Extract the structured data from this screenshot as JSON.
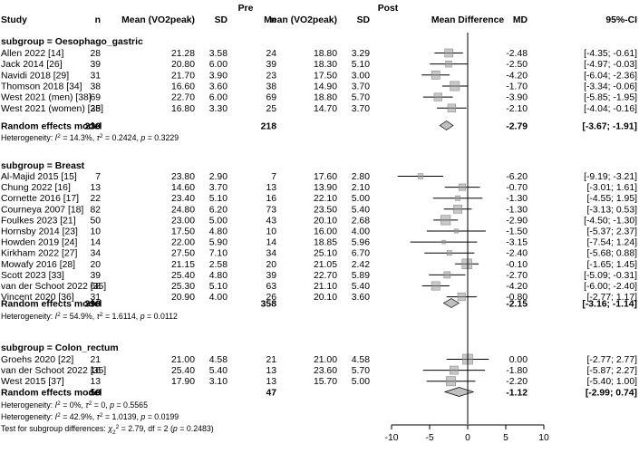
{
  "chart_data": {
    "type": "forest",
    "title": "",
    "header": {
      "group_pre": "Pre",
      "group_post": "Post",
      "study": "Study",
      "n_pre": "n",
      "mean_pre": "Mean (VO2peak)",
      "sd_pre": "SD",
      "n_post": "n",
      "mean_post": "Mean (VO2peak)",
      "sd_post": "SD",
      "plot": "Mean Difference",
      "md": "MD",
      "ci": "95%-CI"
    },
    "x_axis": {
      "range": [
        -10,
        10
      ],
      "ticks": [
        -10,
        -5,
        0,
        5,
        10
      ],
      "ticklabels": [
        "-10",
        "-5",
        "0",
        "5",
        "10"
      ]
    },
    "subgroups": [
      {
        "label": "subgroup = Oesophago_gastric",
        "studies": [
          {
            "study": "Allen 2022 [14]",
            "n_pre": "28",
            "mean_pre": "21.28",
            "sd_pre": "3.58",
            "n_post": "24",
            "mean_post": "18.80",
            "sd_post": "3.29",
            "md_text": "-2.48",
            "ci_text": "[-4.35; -0.61]",
            "md": -2.48,
            "lo": -4.35,
            "hi": -0.61
          },
          {
            "study": "Jack 2014 [26]",
            "n_pre": "39",
            "mean_pre": "20.80",
            "sd_pre": "6.00",
            "n_post": "39",
            "mean_post": "18.30",
            "sd_post": "5.10",
            "md_text": "-2.50",
            "ci_text": "[-4.97; -0.03]",
            "md": -2.5,
            "lo": -4.97,
            "hi": -0.03
          },
          {
            "study": "Navidi 2018 [29]",
            "n_pre": "31",
            "mean_pre": "21.70",
            "sd_pre": "3.90",
            "n_post": "23",
            "mean_post": "17.50",
            "sd_post": "3.00",
            "md_text": "-4.20",
            "ci_text": "[-6.04; -2.36]",
            "md": -4.2,
            "lo": -6.04,
            "hi": -2.36
          },
          {
            "study": "Thomson 2018 [34]",
            "n_pre": "38",
            "mean_pre": "16.60",
            "sd_pre": "3.60",
            "n_post": "38",
            "mean_post": "14.90",
            "sd_post": "3.70",
            "md_text": "-1.70",
            "ci_text": "[-3.34; -0.06]",
            "md": -1.7,
            "lo": -3.34,
            "hi": -0.06
          },
          {
            "study": "West 2021 (men) [38]",
            "n_pre": "69",
            "mean_pre": "22.70",
            "sd_pre": "6.00",
            "n_post": "69",
            "mean_post": "18.80",
            "sd_post": "5.70",
            "md_text": "-3.90",
            "ci_text": "[-5.85; -1.95]",
            "md": -3.9,
            "lo": -5.85,
            "hi": -1.95
          },
          {
            "study": "West 2021 (women) [38]",
            "n_pre": "25",
            "mean_pre": "16.80",
            "sd_pre": "3.30",
            "n_post": "25",
            "mean_post": "14.70",
            "sd_post": "3.70",
            "md_text": "-2.10",
            "ci_text": "[-4.04; -0.16]",
            "md": -2.1,
            "lo": -4.04,
            "hi": -0.16
          }
        ],
        "summary": {
          "label": "Random effects model",
          "n_pre": "230",
          "n_post": "218",
          "md_text": "-2.79",
          "ci_text": "[-3.67; -1.91]",
          "md": -2.79,
          "lo": -3.67,
          "hi": -1.91
        },
        "heterogeneity": [
          {
            "lead": "Heterogeneity: ",
            "i2": "I",
            "i2_eq": " = 14.3%, ",
            "tau": "τ",
            "tau_eq": " = 0.2424, ",
            "p": "p",
            "p_eq": " = 0.3229",
            "sup": "2"
          }
        ]
      },
      {
        "label": "subgroup = Breast",
        "studies": [
          {
            "study": "Al-Majid 2015 [15]",
            "n_pre": "7",
            "mean_pre": "23.80",
            "sd_pre": "2.90",
            "n_post": "7",
            "mean_post": "17.60",
            "sd_post": "2.80",
            "md_text": "-6.20",
            "ci_text": "[-9.19; -3.21]",
            "md": -6.2,
            "lo": -9.19,
            "hi": -3.21
          },
          {
            "study": "Chung 2022 [16]",
            "n_pre": "13",
            "mean_pre": "14.60",
            "sd_pre": "3.70",
            "n_post": "13",
            "mean_post": "13.90",
            "sd_post": "2.10",
            "md_text": "-0.70",
            "ci_text": "[-3.01; 1.61]",
            "md": -0.7,
            "lo": -3.01,
            "hi": 1.61
          },
          {
            "study": "Cornette 2016 [17]",
            "n_pre": "22",
            "mean_pre": "23.40",
            "sd_pre": "5.10",
            "n_post": "16",
            "mean_post": "22.10",
            "sd_post": "5.00",
            "md_text": "-1.30",
            "ci_text": "[-4.55; 1.95]",
            "md": -1.3,
            "lo": -4.55,
            "hi": 1.95
          },
          {
            "study": "Courneya 2007 [18]",
            "n_pre": "82",
            "mean_pre": "24.80",
            "sd_pre": "6.20",
            "n_post": "73",
            "mean_post": "23.50",
            "sd_post": "5.40",
            "md_text": "-1.30",
            "ci_text": "[-3.13; 0.53]",
            "md": -1.3,
            "lo": -3.13,
            "hi": 0.53
          },
          {
            "study": "Foulkes 2023 [21]",
            "n_pre": "50",
            "mean_pre": "23.00",
            "sd_pre": "5.00",
            "n_post": "43",
            "mean_post": "20.10",
            "sd_post": "2.68",
            "md_text": "-2.90",
            "ci_text": "[-4.50; -1.30]",
            "md": -2.9,
            "lo": -4.5,
            "hi": -1.3
          },
          {
            "study": "Hornsby 2014 [23]",
            "n_pre": "10",
            "mean_pre": "17.50",
            "sd_pre": "4.80",
            "n_post": "10",
            "mean_post": "16.00",
            "sd_post": "4.00",
            "md_text": "-1.50",
            "ci_text": "[-5.37; 2.37]",
            "md": -1.5,
            "lo": -5.37,
            "hi": 2.37
          },
          {
            "study": "Howden 2019 [24]",
            "n_pre": "14",
            "mean_pre": "22.00",
            "sd_pre": "5.90",
            "n_post": "14",
            "mean_post": "18.85",
            "sd_post": "5.96",
            "md_text": "-3.15",
            "ci_text": "[-7.54; 1.24]",
            "md": -3.15,
            "lo": -7.54,
            "hi": 1.24
          },
          {
            "study": "Kirkham 2022 [27]",
            "n_pre": "34",
            "mean_pre": "27.50",
            "sd_pre": "7.10",
            "n_post": "34",
            "mean_post": "25.10",
            "sd_post": "6.70",
            "md_text": "-2.40",
            "ci_text": "[-5.68; 0.88]",
            "md": -2.4,
            "lo": -5.68,
            "hi": 0.88
          },
          {
            "study": "Mowafy 2016 [28]",
            "n_pre": "20",
            "mean_pre": "21.15",
            "sd_pre": "2.58",
            "n_post": "20",
            "mean_post": "21.05",
            "sd_post": "2.42",
            "md_text": "-0.10",
            "ci_text": "[-1.65; 1.45]",
            "md": -0.1,
            "lo": -1.65,
            "hi": 1.45
          },
          {
            "study": "Scott 2023 [33]",
            "n_pre": "39",
            "mean_pre": "25.40",
            "sd_pre": "4.80",
            "n_post": "39",
            "mean_post": "22.70",
            "sd_post": "5.89",
            "md_text": "-2.70",
            "ci_text": "[-5.09; -0.31]",
            "md": -2.7,
            "lo": -5.09,
            "hi": -0.31
          },
          {
            "study": "van der Schoot 2022 [35]",
            "n_pre": "68",
            "mean_pre": "25.30",
            "sd_pre": "5.10",
            "n_post": "63",
            "mean_post": "21.10",
            "sd_post": "5.40",
            "md_text": "-4.20",
            "ci_text": "[-6.00; -2.40]",
            "md": -4.2,
            "lo": -6.0,
            "hi": -2.4
          },
          {
            "study": "Vincent 2020 [36]",
            "n_pre": "31",
            "mean_pre": "20.90",
            "sd_pre": "4.00",
            "n_post": "26",
            "mean_post": "20.10",
            "sd_post": "3.60",
            "md_text": "-0.80",
            "ci_text": "[-2.77; 1.17]",
            "md": -0.8,
            "lo": -2.77,
            "hi": 1.17
          }
        ],
        "summary": {
          "label": "Random effects model",
          "n_pre": "390",
          "n_post": "358",
          "md_text": "-2.15",
          "ci_text": "[-3.16; -1.14]",
          "md": -2.15,
          "lo": -3.16,
          "hi": -1.14
        },
        "heterogeneity": [
          {
            "lead": "Heterogeneity: ",
            "i2": "I",
            "i2_eq": " = 54.9%, ",
            "tau": "τ",
            "tau_eq": " = 1.6114, ",
            "p": "p",
            "p_eq": " = 0.0112",
            "sup": "2"
          }
        ]
      },
      {
        "label": "subgroup = Colon_rectum",
        "studies": [
          {
            "study": "Groehs 2020 [22]",
            "n_pre": "21",
            "mean_pre": "21.00",
            "sd_pre": "4.58",
            "n_post": "21",
            "mean_post": "21.00",
            "sd_post": "4.58",
            "md_text": "0.00",
            "ci_text": "[-2.77; 2.77]",
            "md": 0.0,
            "lo": -2.77,
            "hi": 2.77
          },
          {
            "study": "van der Schoot 2022 [35]",
            "n_pre": "16",
            "mean_pre": "25.40",
            "sd_pre": "5.40",
            "n_post": "13",
            "mean_post": "23.60",
            "sd_post": "5.70",
            "md_text": "-1.80",
            "ci_text": "[-5.87; 2.27]",
            "md": -1.8,
            "lo": -5.87,
            "hi": 2.27
          },
          {
            "study": "West 2015 [37]",
            "n_pre": "13",
            "mean_pre": "17.90",
            "sd_pre": "3.10",
            "n_post": "13",
            "mean_post": "15.70",
            "sd_post": "5.00",
            "md_text": "-2.20",
            "ci_text": "[-5.40; 1.00]",
            "md": -2.2,
            "lo": -5.4,
            "hi": 1.0
          }
        ],
        "summary": {
          "label": "Random effects model",
          "n_pre": "50",
          "n_post": "47",
          "md_text": "-1.12",
          "ci_text": "[-2.99; 0.74]",
          "md": -1.12,
          "lo": -2.99,
          "hi": 0.74
        },
        "heterogeneity": [
          {
            "lead": "Heterogeneity: ",
            "i2": "I",
            "i2_eq": " = 0%, ",
            "tau": "τ",
            "tau_eq": " = 0, ",
            "p": "p",
            "p_eq": " = 0.5565",
            "sup": "2"
          },
          {
            "lead": "Heterogeneity: ",
            "i2": "I",
            "i2_eq": " = 42.9%, ",
            "tau": "τ",
            "tau_eq": " = 1.0139, ",
            "p": "p",
            "p_eq": " = 0.0199",
            "sup": "2"
          }
        ]
      }
    ],
    "subgroup_test": {
      "lead": "Test for subgroup differences: ",
      "chi": "χ",
      "sub": "2",
      "sup": "2",
      "eq": " = 2.79, df = 2 (",
      "p": "p",
      "p_eq": " = 0.2483)"
    },
    "colors": {
      "text": "#000000",
      "square": "#9a9a9a",
      "square_border": "#8a8a8a",
      "diamond_fill": "#c0c0c0",
      "line": "#000000",
      "ref_line": "#000000"
    }
  }
}
